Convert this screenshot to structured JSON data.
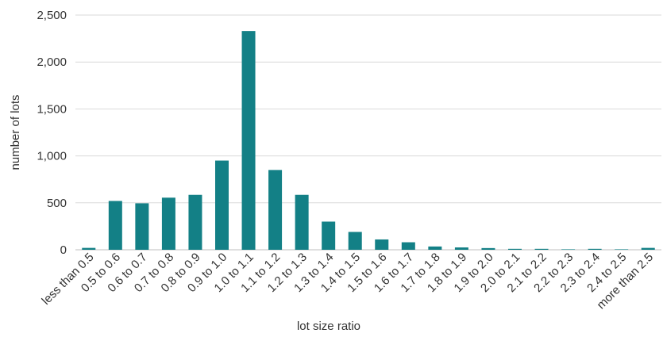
{
  "chart_data": {
    "type": "bar",
    "title": "",
    "xlabel": "lot size ratio",
    "ylabel": "number of lots",
    "ylim": [
      0,
      2500
    ],
    "yticks": [
      0,
      500,
      1000,
      1500,
      2000,
      2500
    ],
    "ytick_labels": [
      "0",
      "500",
      "1,000",
      "1,500",
      "2,000",
      "2,500"
    ],
    "grid": true,
    "legend": "none",
    "bar_color": "#138086",
    "categories": [
      "less than 0.5",
      "0.5 to 0.6",
      "0.6 to 0.7",
      "0.7 to 0.8",
      "0.8 to 0.9",
      "0.9 to 1.0",
      "1.0 to 1.1",
      "1.1 to 1.2",
      "1.2 to 1.3",
      "1.3 to 1.4",
      "1.4 to 1.5",
      "1.5 to 1.6",
      "1.6 to 1.7",
      "1.7 to 1.8",
      "1.8 to 1.9",
      "1.9 to 2.0",
      "2.0 to 2.1",
      "2.1 to 2.2",
      "2.2 to 2.3",
      "2.3 to 2.4",
      "2.4 to 2.5",
      "more than 2.5"
    ],
    "values": [
      20,
      520,
      495,
      555,
      585,
      950,
      2330,
      850,
      585,
      300,
      190,
      110,
      80,
      35,
      25,
      18,
      10,
      10,
      5,
      10,
      5,
      20
    ]
  }
}
